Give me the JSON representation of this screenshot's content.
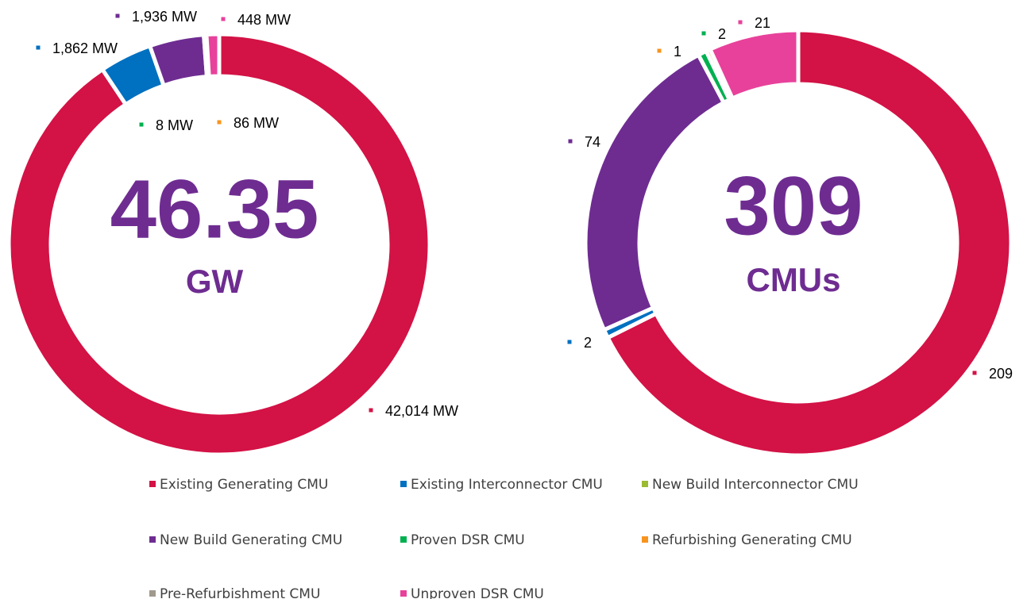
{
  "chart_data": [
    {
      "type": "donut",
      "categories": [
        "Existing Generating CMU",
        "Existing Interconnector CMU",
        "New Build Interconnector CMU",
        "New Build Generating CMU",
        "Proven DSR CMU",
        "Refurbishing Generating CMU",
        "Pre-Refurbishment CMU",
        "Unproven DSR CMU"
      ],
      "colors": [
        "#d31245",
        "#0070c0",
        "#9bbb31",
        "#6e2c91",
        "#00b050",
        "#f7941d",
        "#a09a8e",
        "#e8419b"
      ],
      "values": [
        42014,
        1862,
        null,
        1936,
        8,
        86,
        null,
        448
      ],
      "value_labels": [
        "42,014 MW",
        "1,862 MW",
        null,
        "1,936 MW",
        "8 MW",
        "86 MW",
        null,
        "448 MW"
      ],
      "center_label": "46.35",
      "center_unit": "GW",
      "legend": "bottom"
    },
    {
      "type": "donut",
      "values": [
        209,
        2,
        null,
        74,
        2,
        1,
        null,
        21
      ],
      "center_label": "309",
      "center_unit": "CMUs"
    }
  ]
}
